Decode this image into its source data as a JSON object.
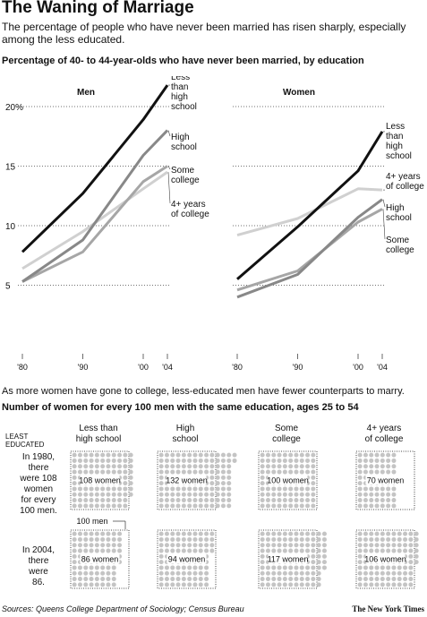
{
  "header": {
    "title": "The Waning of Marriage",
    "subtitle": "The percentage of people who have never been married has risen sharply, especially among the less educated."
  },
  "section1": {
    "title": "Percentage of 40- to 44-year-olds who have never been married, by education"
  },
  "section2": {
    "intro": "As more women have gone to college, less-educated men have fewer counterparts to marry.",
    "title": "Number of women for every 100 men with the same education, ages 25 to 54",
    "row_header": "LEAST EDUCATED",
    "row1_label": [
      "In 1980,",
      "there",
      "were 108",
      "women",
      "for every",
      "100 men."
    ],
    "row2_label": [
      "In 2004,",
      "there",
      "were",
      "86."
    ],
    "callout": "100 men",
    "cell_suffix": "women"
  },
  "colors": {
    "less_than_high_school": "#111111",
    "high_school": "#888888",
    "some_college": "#a6a6a6",
    "four_year_college": "#d0d0d0",
    "dot": "#c4c4c4"
  },
  "chart_data": [
    {
      "type": "line",
      "title": "Men",
      "x": [
        1980,
        1990,
        2000,
        2004
      ],
      "x_tick_labels": [
        "'80",
        "'90",
        "'00",
        "'04"
      ],
      "y_ticks": [
        5,
        10,
        15,
        20
      ],
      "y_tick_labels": [
        "5",
        "10",
        "15",
        "20%"
      ],
      "ylim": [
        3,
        22
      ],
      "grid": "dotted horizontal",
      "series": [
        {
          "name": "Less than high school",
          "label_lines": [
            "Less",
            "than",
            "high",
            "school"
          ],
          "color_key": "less_than_high_school",
          "values": [
            7.8,
            12.7,
            18.9,
            21.8
          ]
        },
        {
          "name": "High school",
          "label_lines": [
            "High",
            "school"
          ],
          "color_key": "high_school",
          "values": [
            5.3,
            8.8,
            15.9,
            18.0
          ]
        },
        {
          "name": "Some college",
          "label_lines": [
            "Some",
            "college"
          ],
          "color_key": "some_college",
          "values": [
            5.3,
            7.8,
            13.7,
            15.0
          ]
        },
        {
          "name": "4+ years of college",
          "label_lines": [
            "4+ years",
            "of college"
          ],
          "color_key": "four_year_college",
          "values": [
            6.4,
            9.5,
            13.1,
            14.5
          ]
        }
      ]
    },
    {
      "type": "line",
      "title": "Women",
      "x": [
        1980,
        1990,
        2000,
        2004
      ],
      "x_tick_labels": [
        "'80",
        "'90",
        "'00",
        "'04"
      ],
      "y_ticks": [
        5,
        10,
        15,
        20
      ],
      "ylim": [
        3,
        22
      ],
      "grid": "dotted horizontal",
      "series": [
        {
          "name": "Less than high school",
          "label_lines": [
            "Less",
            "than",
            "high",
            "school"
          ],
          "color_key": "less_than_high_school",
          "values": [
            5.5,
            9.9,
            14.6,
            17.9
          ]
        },
        {
          "name": "4+ years of college",
          "label_lines": [
            "4+ years",
            "of college"
          ],
          "color_key": "four_year_college",
          "values": [
            9.2,
            10.6,
            13.1,
            13.0
          ]
        },
        {
          "name": "High school",
          "label_lines": [
            "High",
            "school"
          ],
          "color_key": "high_school",
          "values": [
            4.0,
            5.9,
            10.7,
            12.2
          ]
        },
        {
          "name": "Some college",
          "label_lines": [
            "Some",
            "college"
          ],
          "color_key": "some_college",
          "values": [
            4.6,
            6.2,
            10.3,
            11.4
          ]
        }
      ]
    },
    {
      "type": "table",
      "title": "Number of women for every 100 men with the same education, ages 25 to 54",
      "categories": [
        "Less than high school",
        "High school",
        "Some college",
        "4+ years of college"
      ],
      "category_label_lines": [
        [
          "Less than",
          "high school"
        ],
        [
          "High",
          "school"
        ],
        [
          "Some",
          "college"
        ],
        [
          "4+ years",
          "of college"
        ]
      ],
      "series": [
        {
          "name": "1980",
          "values": [
            108,
            132,
            100,
            70
          ]
        },
        {
          "name": "2004",
          "values": [
            86,
            94,
            117,
            106
          ]
        }
      ]
    }
  ],
  "footer": {
    "source": "Sources: Queens College Department of Sociology; Census Bureau",
    "credit": "The New York Times"
  }
}
